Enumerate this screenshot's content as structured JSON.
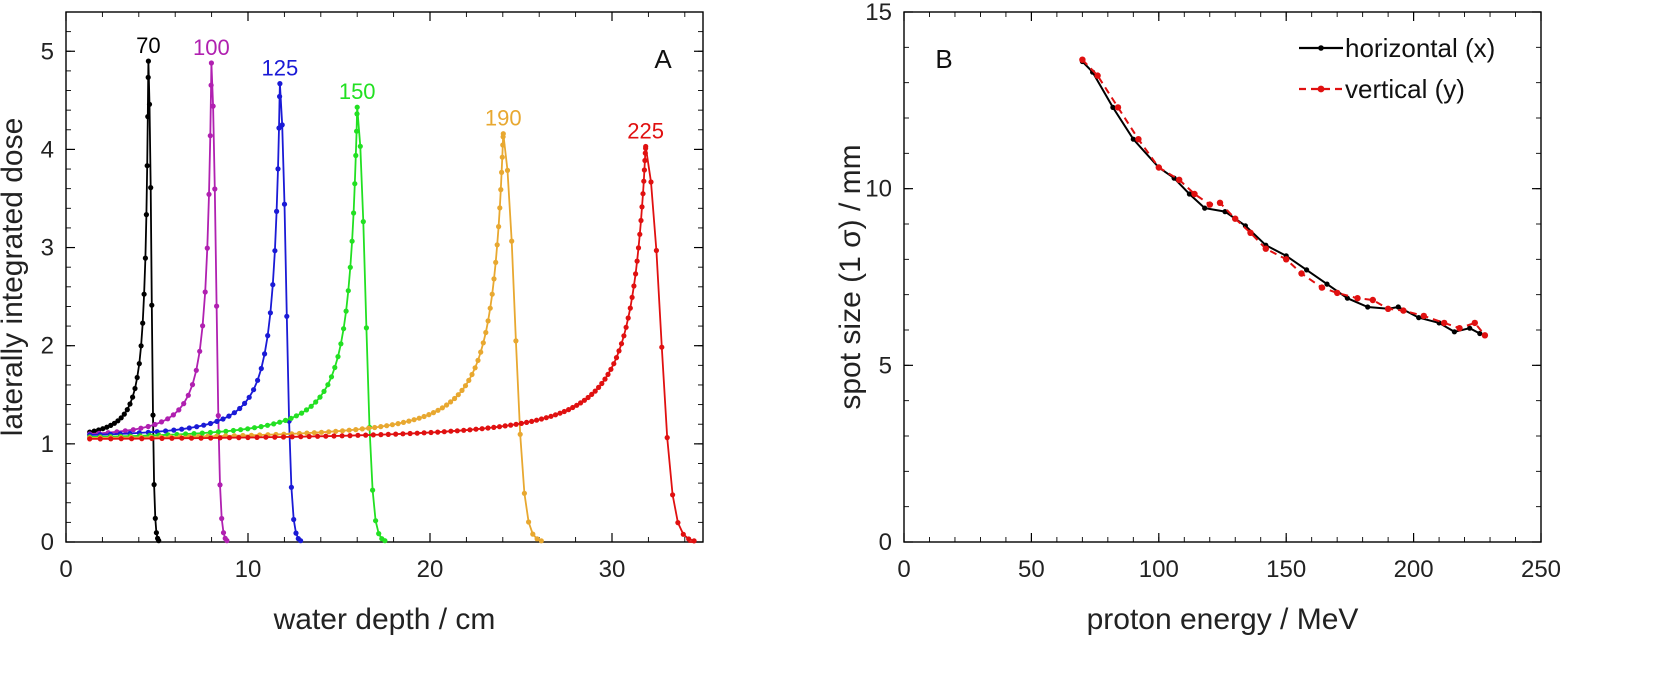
{
  "chart_data": [
    {
      "type": "line",
      "panel_label": "A",
      "xlabel": "water depth / cm",
      "ylabel": "laterally integrated dose",
      "xlim": [
        0,
        35
      ],
      "ylim": [
        0,
        5.4
      ],
      "xticks": [
        0,
        10,
        20,
        30
      ],
      "yticks": [
        0,
        1,
        2,
        3,
        4,
        5
      ],
      "xtick_labels": [
        "0",
        "10",
        "20",
        "30"
      ],
      "ytick_labels": [
        "0",
        "1",
        "2",
        "3",
        "4",
        "5"
      ],
      "series": [
        {
          "name": "70",
          "label": "70",
          "color": "#000000",
          "range_cm": 4.6,
          "peak": 4.9,
          "entrance": 1.12,
          "falloff_cm": 0.3
        },
        {
          "name": "100",
          "label": "100",
          "color": "#b020b0",
          "range_cm": 8.1,
          "peak": 4.88,
          "entrance": 1.1,
          "falloff_cm": 0.45
        },
        {
          "name": "125",
          "label": "125",
          "color": "#1a1ad6",
          "range_cm": 11.9,
          "peak": 4.67,
          "entrance": 1.09,
          "falloff_cm": 0.6
        },
        {
          "name": "150",
          "label": "150",
          "color": "#22e022",
          "range_cm": 16.2,
          "peak": 4.43,
          "entrance": 1.07,
          "falloff_cm": 0.8
        },
        {
          "name": "190",
          "label": "190",
          "color": "#e8a830",
          "range_cm": 24.3,
          "peak": 4.16,
          "entrance": 1.06,
          "falloff_cm": 1.1
        },
        {
          "name": "225",
          "label": "225",
          "color": "#e01010",
          "range_cm": 32.2,
          "peak": 4.03,
          "entrance": 1.05,
          "falloff_cm": 1.4
        }
      ]
    },
    {
      "type": "line",
      "panel_label": "B",
      "xlabel": "proton energy / MeV",
      "ylabel": "spot size (1 σ) / mm",
      "xlim": [
        0,
        250
      ],
      "ylim": [
        0,
        15
      ],
      "xticks": [
        0,
        50,
        100,
        150,
        200,
        250
      ],
      "yticks": [
        0,
        5,
        10,
        15
      ],
      "xtick_labels": [
        "0",
        "50",
        "100",
        "150",
        "200",
        "250"
      ],
      "ytick_labels": [
        "0",
        "5",
        "10",
        "15"
      ],
      "legend": "top-right",
      "series": [
        {
          "name": "horizontal (x)",
          "color": "#000000",
          "style": "solid",
          "x": [
            70,
            74,
            82,
            90,
            100,
            106,
            112,
            118,
            126,
            134,
            142,
            150,
            158,
            166,
            174,
            182,
            190,
            194,
            202,
            210,
            216,
            222,
            226
          ],
          "y": [
            13.6,
            13.3,
            12.3,
            11.4,
            10.6,
            10.3,
            9.85,
            9.45,
            9.35,
            8.95,
            8.4,
            8.1,
            7.7,
            7.3,
            6.9,
            6.65,
            6.6,
            6.65,
            6.35,
            6.2,
            5.95,
            6.05,
            5.9
          ]
        },
        {
          "name": "vertical (y)",
          "color": "#e01010",
          "style": "dashed",
          "x": [
            70,
            76,
            84,
            92,
            100,
            108,
            114,
            120,
            124,
            130,
            136,
            142,
            150,
            156,
            164,
            170,
            178,
            184,
            190,
            196,
            204,
            212,
            218,
            224,
            228
          ],
          "y": [
            13.65,
            13.2,
            12.3,
            11.4,
            10.6,
            10.25,
            9.85,
            9.55,
            9.6,
            9.15,
            8.75,
            8.3,
            8.0,
            7.6,
            7.2,
            7.05,
            6.9,
            6.85,
            6.6,
            6.55,
            6.4,
            6.2,
            6.05,
            6.2,
            5.85
          ]
        }
      ]
    }
  ]
}
